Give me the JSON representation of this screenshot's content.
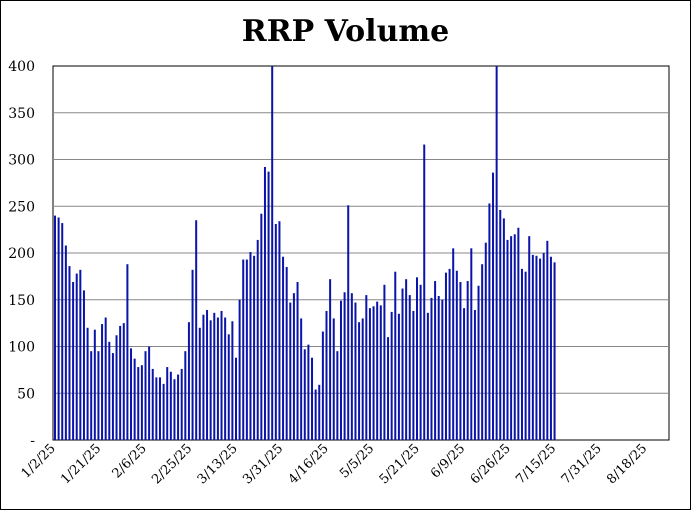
{
  "chart_data": {
    "type": "bar",
    "title": "RRP Volume",
    "xlabel": "",
    "ylabel": "",
    "ylim": [
      0,
      400
    ],
    "y_tick_labels": [
      "-",
      "50",
      "100",
      "150",
      "200",
      "250",
      "300",
      "350",
      "400"
    ],
    "x_tick_labels": [
      "1/2/25",
      "1/21/25",
      "2/6/25",
      "2/25/25",
      "3/13/25",
      "3/31/25",
      "4/16/25",
      "5/5/25",
      "5/21/25",
      "6/9/25",
      "6/26/25",
      "7/15/25",
      "7/31/25",
      "8/18/25"
    ],
    "grid": "horizontal",
    "bar_color": "#0a14a8",
    "series": [
      {
        "values": [
          240,
          238,
          232,
          208,
          186,
          169,
          178,
          182,
          160,
          120,
          95,
          118,
          95,
          124,
          131,
          105,
          93,
          112,
          122,
          125,
          188,
          98,
          87,
          78,
          80,
          95,
          100,
          76,
          67,
          67,
          60,
          78,
          73,
          65,
          70,
          76,
          95,
          126,
          182,
          235,
          120,
          134,
          139,
          128,
          136,
          131,
          138,
          131,
          113,
          127,
          88,
          150,
          193,
          193,
          201,
          197,
          214,
          242,
          292,
          287,
          400,
          231,
          234,
          196,
          185,
          147,
          157,
          169,
          130,
          97,
          102,
          88,
          54,
          59,
          116,
          138,
          172,
          130,
          95,
          149,
          158,
          251,
          157,
          147,
          126,
          130,
          155,
          141,
          143,
          148,
          144,
          166,
          110,
          137,
          180,
          135,
          162,
          172,
          155,
          138,
          174,
          166,
          316,
          136,
          152,
          170,
          154,
          150,
          179,
          183,
          205,
          181,
          169,
          141,
          170,
          205,
          139,
          165,
          188,
          211,
          253,
          286,
          400,
          246,
          237,
          214,
          218,
          220,
          227,
          183,
          180,
          218,
          198,
          197,
          194,
          200,
          213,
          196,
          190
        ]
      }
    ]
  }
}
